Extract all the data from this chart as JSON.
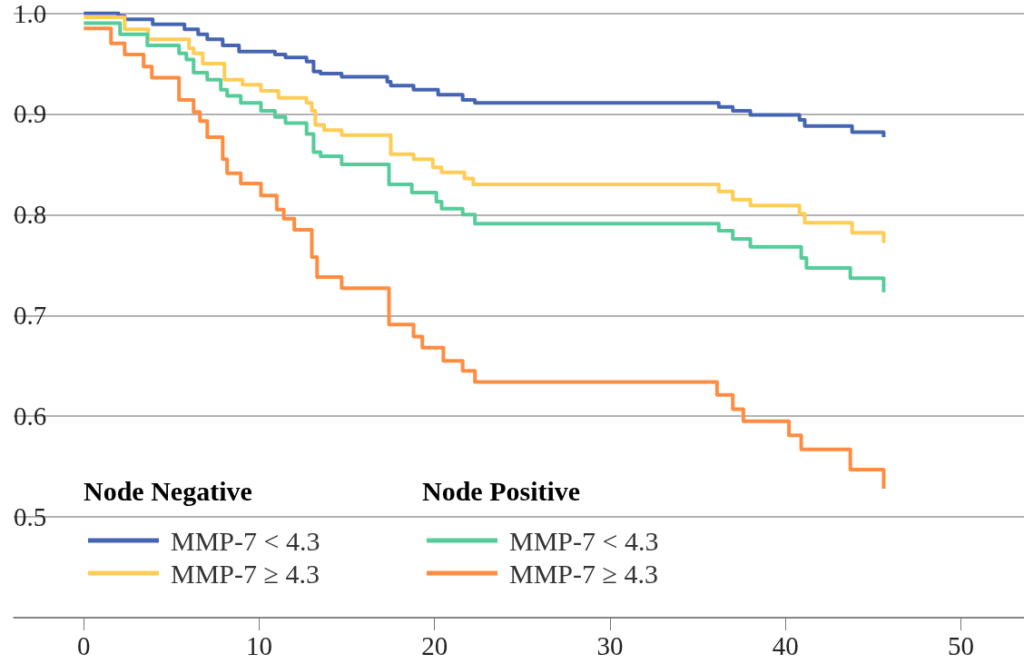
{
  "chart_data": {
    "type": "step",
    "annotations": [
      "Node Negative",
      "Node Positive"
    ],
    "series": [
      {
        "name": "MMP-7 < 4.3",
        "color": "#4565b3",
        "x": [
          0,
          1.97,
          2.33,
          3.93,
          5.74,
          6.52,
          7.04,
          7.92,
          8.85,
          10.9,
          11.5,
          12.7,
          13.1,
          13.5,
          14.7,
          17.3,
          17.5,
          18.8,
          20.2,
          21.6,
          22.3,
          36.2,
          37.0,
          38.0,
          40.8,
          41.1,
          43.8,
          45.6
        ],
        "values": [
          1.0,
          0.997,
          0.994,
          0.989,
          0.984,
          0.979,
          0.974,
          0.968,
          0.962,
          0.959,
          0.956,
          0.952,
          0.942,
          0.94,
          0.937,
          0.932,
          0.928,
          0.924,
          0.919,
          0.914,
          0.911,
          0.907,
          0.903,
          0.899,
          0.894,
          0.888,
          0.882,
          0.877
        ]
      },
      {
        "name": "MMP-7 ≥ 4.3",
        "color": "#ffcc55",
        "x": [
          0,
          2.33,
          3.67,
          6.0,
          6.26,
          6.78,
          8.02,
          9.05,
          10.1,
          11.1,
          12.7,
          13.0,
          13.2,
          13.7,
          14.7,
          17.5,
          18.8,
          19.9,
          20.4,
          21.7,
          22.2,
          36.2,
          37.0,
          38.0,
          40.8,
          41.1,
          43.8,
          45.6
        ],
        "values": [
          0.996,
          0.984,
          0.974,
          0.965,
          0.96,
          0.95,
          0.934,
          0.929,
          0.923,
          0.916,
          0.911,
          0.903,
          0.889,
          0.884,
          0.879,
          0.86,
          0.855,
          0.847,
          0.842,
          0.836,
          0.83,
          0.823,
          0.815,
          0.809,
          0.801,
          0.792,
          0.782,
          0.772
        ]
      },
      {
        "name": "MMP-7 < 4.3",
        "color": "#55cc99",
        "x": [
          0,
          2.07,
          3.62,
          5.43,
          5.85,
          6.26,
          7.04,
          7.81,
          8.17,
          8.95,
          10.1,
          10.9,
          11.5,
          12.7,
          13.1,
          13.5,
          14.7,
          17.4,
          18.7,
          20.1,
          20.4,
          21.6,
          22.3,
          36.2,
          37.0,
          38.0,
          40.9,
          41.2,
          43.7,
          45.6
        ],
        "values": [
          0.99,
          0.979,
          0.968,
          0.96,
          0.954,
          0.941,
          0.934,
          0.924,
          0.918,
          0.911,
          0.903,
          0.897,
          0.891,
          0.88,
          0.862,
          0.858,
          0.85,
          0.83,
          0.822,
          0.813,
          0.806,
          0.8,
          0.791,
          0.784,
          0.776,
          0.768,
          0.757,
          0.747,
          0.737,
          0.723
        ]
      },
      {
        "name": "MMP-7 ≥ 4.3",
        "color": "#ff8c40",
        "x": [
          0,
          1.55,
          2.33,
          3.41,
          3.88,
          5.43,
          6.26,
          6.62,
          7.04,
          7.92,
          8.17,
          8.95,
          10.1,
          11.0,
          11.4,
          12.0,
          13.0,
          13.3,
          14.7,
          17.4,
          18.8,
          19.3,
          20.5,
          21.6,
          22.3,
          36.1,
          37.0,
          37.6,
          40.2,
          40.9,
          43.7,
          45.6
        ],
        "values": [
          0.985,
          0.97,
          0.959,
          0.947,
          0.936,
          0.914,
          0.902,
          0.893,
          0.877,
          0.855,
          0.841,
          0.831,
          0.819,
          0.805,
          0.796,
          0.785,
          0.758,
          0.738,
          0.727,
          0.691,
          0.679,
          0.668,
          0.655,
          0.645,
          0.634,
          0.621,
          0.607,
          0.595,
          0.581,
          0.567,
          0.547,
          0.528
        ]
      }
    ],
    "xlim": [
      -4,
      53.6
    ],
    "xticks": [
      0,
      10,
      20,
      30,
      40,
      50
    ],
    "ylim": [
      0.4,
      1.0
    ],
    "yticks": [
      {
        "value": 0.4,
        "label": null
      },
      0.5,
      0.6,
      0.7,
      0.8,
      0.9,
      {
        "value": 1.0,
        "label": "1.0"
      }
    ],
    "grid": "y",
    "legend": "bottom left",
    "marker": "none",
    "line_style": "solid"
  }
}
